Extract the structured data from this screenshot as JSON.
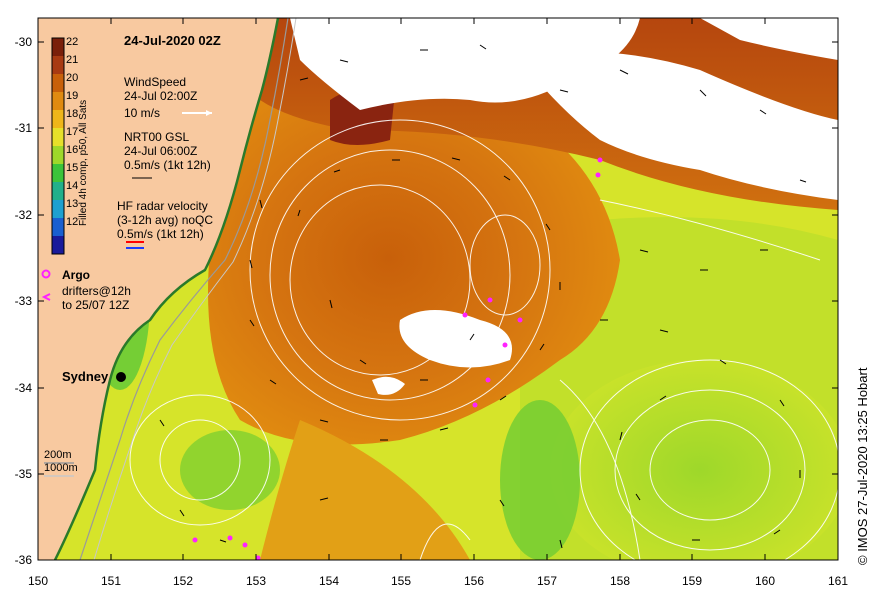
{
  "map": {
    "title": "24-Jul-2020 02Z",
    "lon_ticks": [
      "150",
      "151",
      "152",
      "153",
      "154",
      "155",
      "156",
      "157",
      "158",
      "159",
      "160",
      "161"
    ],
    "lat_ticks": [
      "-30",
      "-31",
      "-32",
      "-33",
      "-34",
      "-35",
      "-36"
    ],
    "city_label": "Sydney",
    "depth_200": "200m",
    "depth_1000": "1000m",
    "credit": "© IMOS 27-Jul-2020 13:25 Hobart"
  },
  "colorbar": {
    "ticks": [
      "22",
      "21",
      "20",
      "19",
      "18",
      "17",
      "16",
      "15",
      "14",
      "13",
      "12"
    ],
    "title": "Filled 4h comp, p50, All Sats",
    "colors": [
      "#7a1f0a",
      "#a83a12",
      "#c8600a",
      "#e08a10",
      "#eeb61a",
      "#e6e02a",
      "#9ed82a",
      "#3cc43a",
      "#22b08a",
      "#1ea0d0",
      "#1a5fd0",
      "#1a1a9a"
    ]
  },
  "legend": {
    "wind_line1": "WindSpeed",
    "wind_line2": "24-Jul 02:00Z",
    "wind_line3": "10 m/s",
    "gsl_line1": "NRT00 GSL",
    "gsl_line2": "24-Jul 06:00Z",
    "gsl_line3": "0.5m/s (1kt 12h)",
    "hf_line1": "HF radar velocity",
    "hf_line2": "(3-12h avg) noQC",
    "hf_line3": "0.5m/s (1kt 12h)",
    "argo": "Argo",
    "drifters_line1": "drifters@12h",
    "drifters_line2": "to 25/07 12Z"
  },
  "colors": {
    "land": "#f8c9a0",
    "cloud": "#ffffff",
    "contour": "#ffffff",
    "argo": "#ff22ff"
  }
}
